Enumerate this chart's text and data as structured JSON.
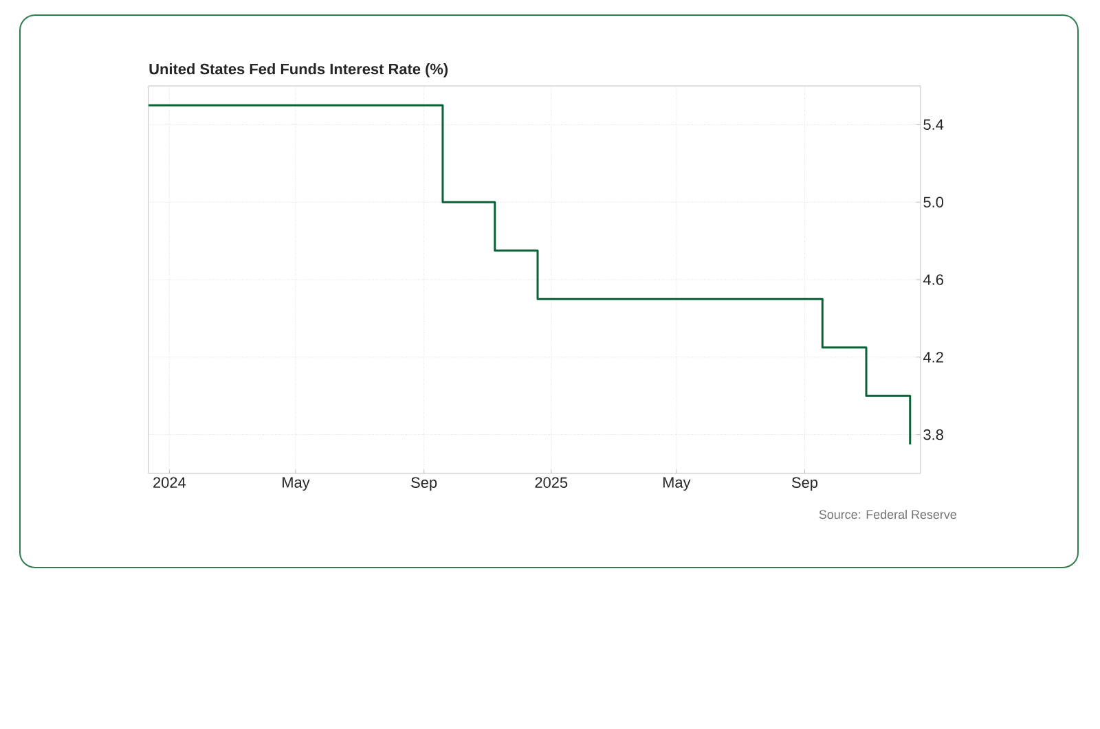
{
  "chart_data": {
    "type": "step",
    "title": "United States Fed Funds Interest Rate (%)",
    "annotations": [
      "Source: Federal Reserve"
    ],
    "x": [
      "2023-12-12",
      "2024-09-19",
      "2024-11-08",
      "2024-12-19",
      "2025-09-18",
      "2025-10-30",
      "2025-12-11"
    ],
    "series": [
      {
        "color": "#0b6138",
        "values": [
          5.5,
          5.0,
          4.75,
          4.5,
          4.25,
          4.0,
          3.75
        ]
      }
    ],
    "xlim": [
      "2023-12-12",
      "2025-12-21"
    ],
    "xticks": [
      {
        "value": "2024-01-01",
        "label": "2024"
      },
      {
        "value": "2024-05-01",
        "label": "May"
      },
      {
        "value": "2024-09-01",
        "label": "Sep"
      },
      {
        "value": "2025-01-01",
        "label": "2025"
      },
      {
        "value": "2025-05-01",
        "label": "May"
      },
      {
        "value": "2025-09-01",
        "label": "Sep"
      }
    ],
    "ylim": [
      3.6,
      5.6
    ],
    "yticks": [
      3.8,
      4.2,
      4.6,
      {
        "value": 5.0,
        "label": "5.0"
      },
      5.4
    ],
    "grid": true
  }
}
